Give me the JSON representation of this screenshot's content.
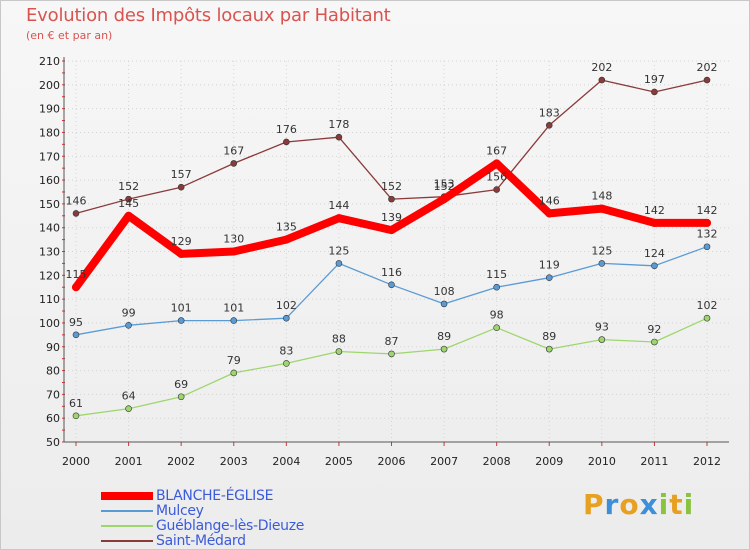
{
  "title": "Evolution des Impôts locaux par Habitant",
  "subtitle": "(en € et par an)",
  "logo": {
    "text": "Proxiti",
    "letters": [
      {
        "ch": "P",
        "color": "#e8a020"
      },
      {
        "ch": "r",
        "color": "#3c8fd8"
      },
      {
        "ch": "o",
        "color": "#e8a020"
      },
      {
        "ch": "x",
        "color": "#3c8fd8"
      },
      {
        "ch": "i",
        "color": "#8ac43f"
      },
      {
        "ch": "t",
        "color": "#e8a020"
      },
      {
        "ch": "i",
        "color": "#8ac43f"
      }
    ]
  },
  "chart_data": {
    "type": "line",
    "title": "Evolution des Impôts locaux par Habitant",
    "subtitle": "(en € et par an)",
    "xlabel": "",
    "ylabel": "",
    "ylim": [
      50,
      210
    ],
    "yticks": [
      50,
      60,
      70,
      80,
      90,
      100,
      110,
      120,
      130,
      140,
      150,
      160,
      170,
      180,
      190,
      200,
      210
    ],
    "grid": true,
    "legend_position": "bottom-left",
    "categories": [
      "2000",
      "2001",
      "2002",
      "2003",
      "2004",
      "2005",
      "2006",
      "2007",
      "2008",
      "2009",
      "2010",
      "2011",
      "2012"
    ],
    "series": [
      {
        "name": "BLANCHE-ÉGLISE",
        "color": "#ff0000",
        "values": [
          115,
          145,
          129,
          130,
          135,
          144,
          139,
          152,
          167,
          146,
          148,
          142,
          142
        ]
      },
      {
        "name": "Mulcey",
        "color": "#5b9bd5",
        "values": [
          95,
          99,
          101,
          101,
          102,
          125,
          116,
          108,
          115,
          119,
          125,
          124,
          132
        ]
      },
      {
        "name": "Guéblange-lès-Dieuze",
        "color": "#9ed66e",
        "values": [
          61,
          64,
          69,
          79,
          83,
          88,
          87,
          89,
          98,
          89,
          93,
          92,
          102
        ]
      },
      {
        "name": "Saint-Médard",
        "color": "#8b3a3a",
        "values": [
          146,
          152,
          157,
          167,
          176,
          178,
          152,
          153,
          156,
          183,
          202,
          197,
          202
        ]
      }
    ]
  }
}
